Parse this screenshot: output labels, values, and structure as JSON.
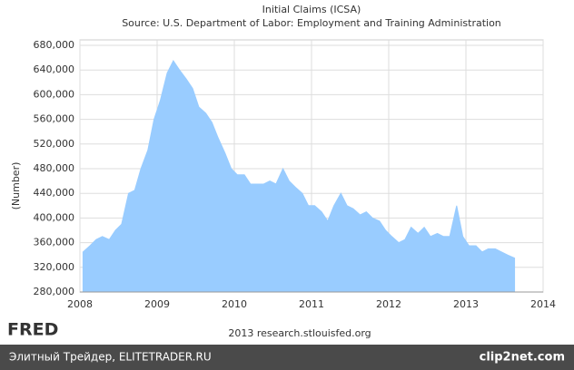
{
  "chart_data": {
    "type": "area",
    "title": "Initial Claims (ICSA)",
    "subtitle": "Source: U.S. Department of Labor: Employment and Training Administration",
    "y_label": "(Number)",
    "color": "#99ccff",
    "grid": true,
    "x": [
      2008.04,
      2008.13,
      2008.21,
      2008.29,
      2008.38,
      2008.46,
      2008.54,
      2008.63,
      2008.71,
      2008.79,
      2008.88,
      2008.96,
      2009.04,
      2009.13,
      2009.21,
      2009.29,
      2009.38,
      2009.46,
      2009.54,
      2009.63,
      2009.71,
      2009.79,
      2009.88,
      2009.96,
      2010.04,
      2010.13,
      2010.21,
      2010.29,
      2010.38,
      2010.46,
      2010.54,
      2010.63,
      2010.71,
      2010.79,
      2010.88,
      2010.96,
      2011.04,
      2011.13,
      2011.21,
      2011.29,
      2011.38,
      2011.46,
      2011.54,
      2011.63,
      2011.71,
      2011.79,
      2011.88,
      2011.96,
      2012.04,
      2012.13,
      2012.21,
      2012.29,
      2012.38,
      2012.46,
      2012.54,
      2012.63,
      2012.71,
      2012.79,
      2012.88,
      2012.96,
      2013.04,
      2013.13,
      2013.21,
      2013.29,
      2013.38,
      2013.46,
      2013.54,
      2013.63
    ],
    "values": [
      345000,
      355000,
      365000,
      370000,
      365000,
      380000,
      390000,
      440000,
      445000,
      480000,
      510000,
      560000,
      590000,
      635000,
      655000,
      640000,
      625000,
      610000,
      580000,
      570000,
      555000,
      530000,
      505000,
      480000,
      470000,
      470000,
      455000,
      455000,
      455000,
      460000,
      455000,
      480000,
      460000,
      450000,
      440000,
      420000,
      420000,
      410000,
      395000,
      420000,
      440000,
      420000,
      415000,
      405000,
      410000,
      400000,
      395000,
      380000,
      370000,
      360000,
      365000,
      385000,
      375000,
      385000,
      370000,
      375000,
      370000,
      370000,
      420000,
      370000,
      355000,
      355000,
      345000,
      350000,
      350000,
      345000,
      340000,
      335000
    ],
    "xlim": [
      2008,
      2014
    ],
    "xticks": [
      2008,
      2009,
      2010,
      2011,
      2012,
      2013,
      2014
    ],
    "ylim": [
      280000,
      680000
    ],
    "yticks": [
      {
        "value": 280000,
        "label": "280,000"
      },
      {
        "value": 320000,
        "label": "320,000"
      },
      {
        "value": 360000,
        "label": "360,000"
      },
      {
        "value": 400000,
        "label": "400,000"
      },
      {
        "value": 440000,
        "label": "440,000"
      },
      {
        "value": 480000,
        "label": "480,000"
      },
      {
        "value": 520000,
        "label": "520,000"
      },
      {
        "value": 560000,
        "label": "560,000"
      },
      {
        "value": 600000,
        "label": "600,000"
      },
      {
        "value": 640000,
        "label": "640,000"
      },
      {
        "value": 680000,
        "label": "680,000"
      }
    ]
  },
  "branding": {
    "logo": "FRED",
    "credit": "2013 research.stlouisfed.org"
  },
  "footer": {
    "left": "Элитный Трейдер, ELITETRADER.RU",
    "right": "clip2net.com"
  }
}
